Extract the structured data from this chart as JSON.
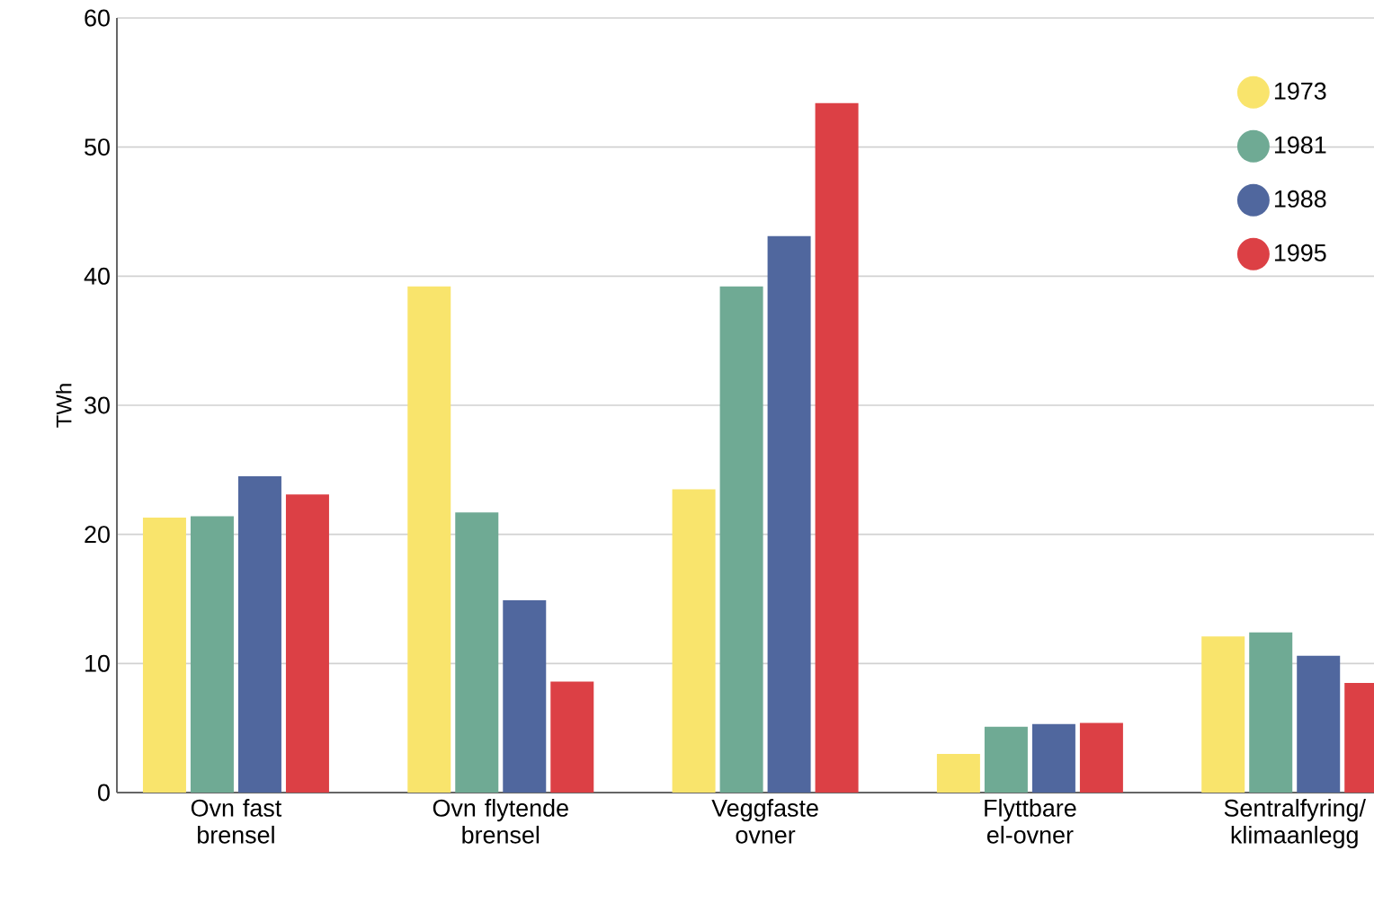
{
  "chart_data": {
    "type": "bar",
    "ylabel": "TWh",
    "categories": [
      "Ovn fast brensel",
      "Ovn flytende brensel",
      "Veggfaste ovner",
      "Flyttbare el-ovner",
      "Sentralfyring/ klimaanlegg"
    ],
    "series": [
      {
        "name": "1973",
        "color": "#f9e46c",
        "values": [
          21.3,
          39.2,
          23.5,
          3.0,
          12.1
        ]
      },
      {
        "name": "1981",
        "color": "#6faa94",
        "values": [
          21.4,
          21.7,
          39.2,
          5.1,
          12.4
        ]
      },
      {
        "name": "1988",
        "color": "#50679e",
        "values": [
          24.5,
          14.9,
          43.1,
          5.3,
          10.6
        ]
      },
      {
        "name": "1995",
        "color": "#dc4045",
        "values": [
          23.1,
          8.6,
          53.4,
          5.4,
          8.5
        ]
      }
    ],
    "ylim": [
      0,
      60
    ],
    "yticks": [
      0,
      10,
      20,
      30,
      40,
      50,
      60
    ],
    "grid": "y",
    "legend": "top right",
    "marker": "circle"
  }
}
